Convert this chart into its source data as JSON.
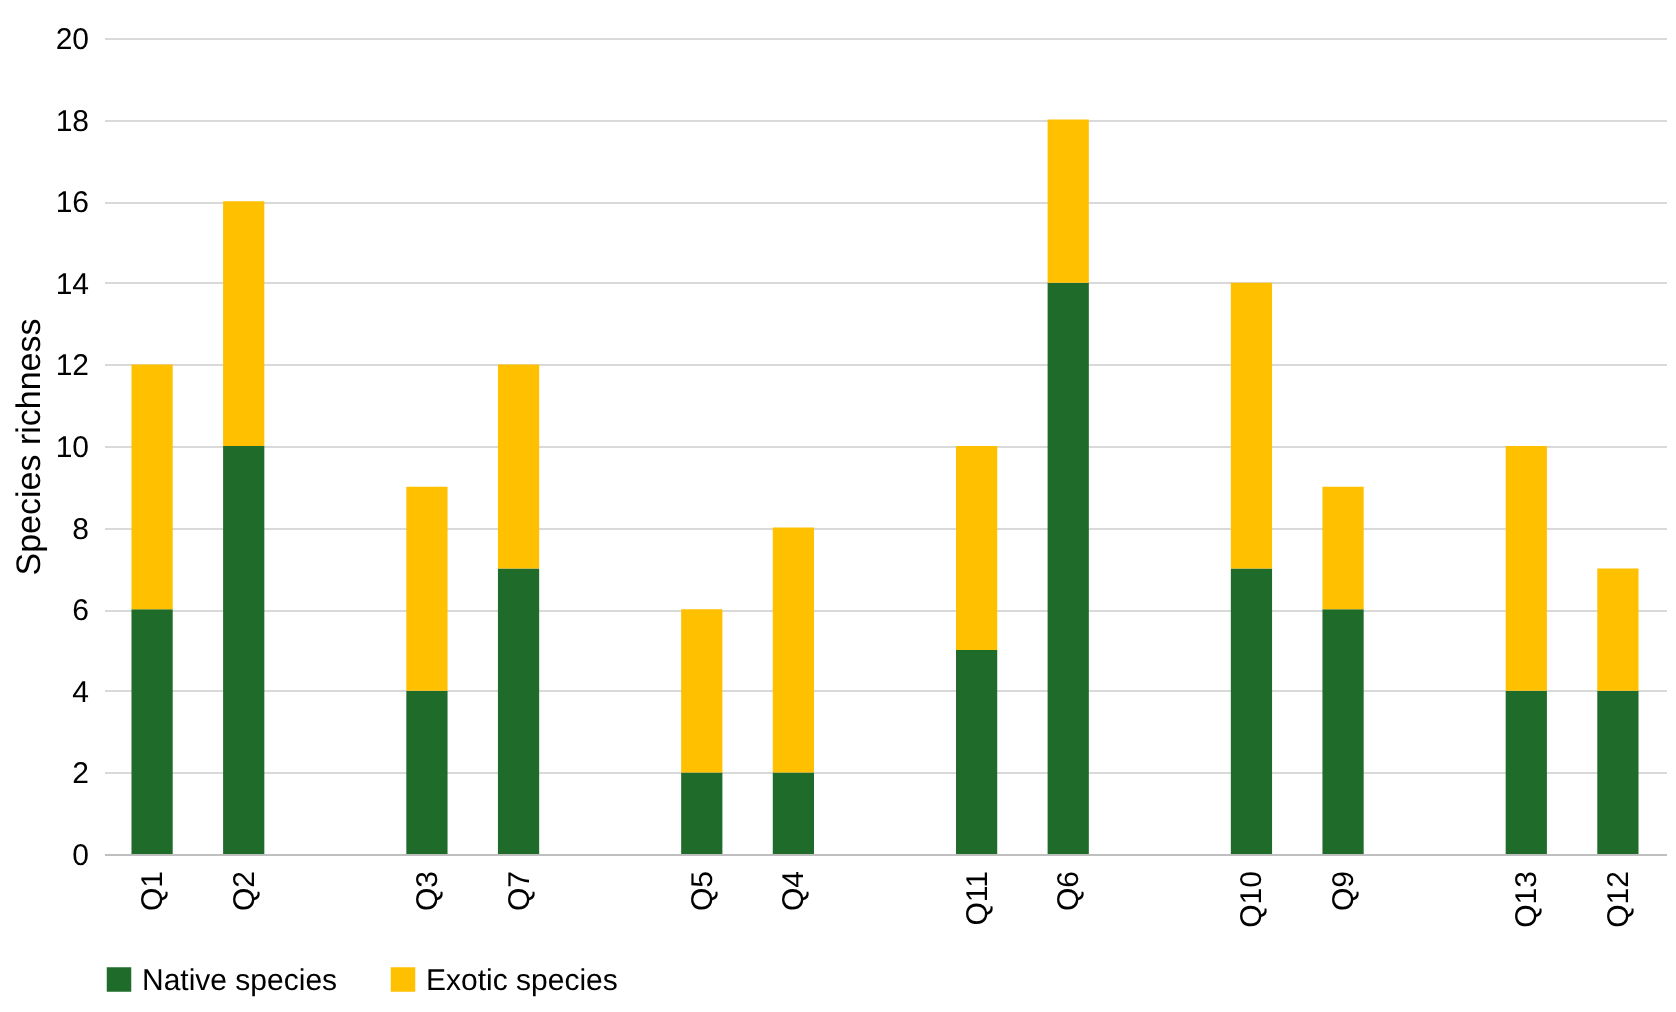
{
  "chart_data": {
    "type": "bar",
    "stacked": true,
    "ylabel": "Species richness",
    "categories": [
      "Q1",
      "Q2",
      null,
      "Q3",
      "Q7",
      null,
      "Q5",
      "Q4",
      null,
      "Q11",
      "Q6",
      null,
      "Q10",
      "Q9",
      null,
      "Q13",
      "Q12"
    ],
    "series": [
      {
        "name": "Native species",
        "color": "#1e6b2a",
        "values": [
          6,
          10,
          null,
          4,
          7,
          null,
          2,
          2,
          null,
          5,
          14,
          null,
          7,
          6,
          null,
          4,
          4
        ]
      },
      {
        "name": "Exotic species",
        "color": "#ffc000",
        "values": [
          6,
          6,
          null,
          5,
          5,
          null,
          4,
          6,
          null,
          5,
          4,
          null,
          7,
          3,
          null,
          6,
          3
        ]
      }
    ],
    "ylim": [
      0,
      20
    ],
    "yticks": [
      0,
      2,
      4,
      6,
      8,
      10,
      12,
      14,
      16,
      18,
      20
    ],
    "grid": "y",
    "legend": "bottom"
  }
}
